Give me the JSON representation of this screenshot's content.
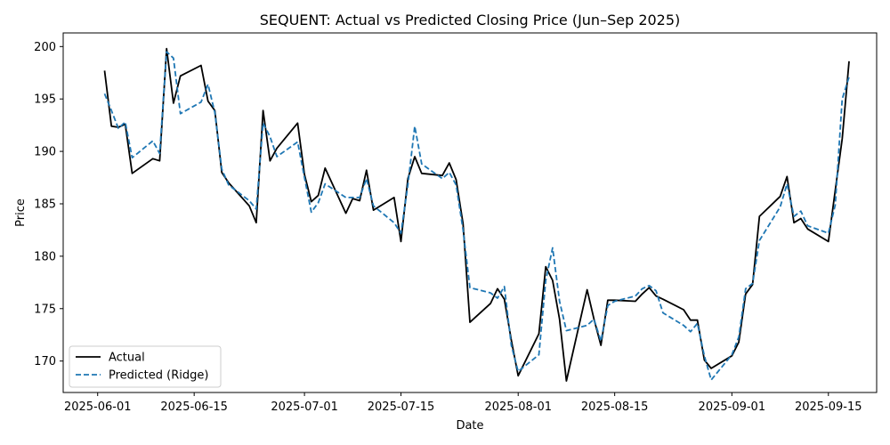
{
  "chart_data": {
    "type": "line",
    "title": "SEQUENT: Actual vs Predicted Closing Price (Jun–Sep 2025)",
    "xlabel": "Date",
    "ylabel": "Price",
    "x_tick_labels": [
      "2025-06-01",
      "2025-06-15",
      "2025-07-01",
      "2025-07-15",
      "2025-08-01",
      "2025-08-15",
      "2025-09-01",
      "2025-09-15"
    ],
    "y_ticks": [
      170,
      175,
      180,
      185,
      190,
      195,
      200
    ],
    "xlim": [
      "2025-05-27",
      "2025-09-22"
    ],
    "ylim": [
      167,
      201.3
    ],
    "grid": false,
    "legend_position": "lower-left",
    "series": [
      {
        "name": "Actual",
        "color": "#000000",
        "style": "solid",
        "points": [
          [
            "2025-06-02",
            197.7
          ],
          [
            "2025-06-03",
            192.4
          ],
          [
            "2025-06-04",
            192.3
          ],
          [
            "2025-06-05",
            192.6
          ],
          [
            "2025-06-06",
            187.9
          ],
          [
            "2025-06-09",
            189.3
          ],
          [
            "2025-06-10",
            189.1
          ],
          [
            "2025-06-11",
            199.8
          ],
          [
            "2025-06-12",
            194.6
          ],
          [
            "2025-06-13",
            197.2
          ],
          [
            "2025-06-16",
            198.2
          ],
          [
            "2025-06-17",
            194.8
          ],
          [
            "2025-06-18",
            193.9
          ],
          [
            "2025-06-19",
            188.0
          ],
          [
            "2025-06-20",
            187.0
          ],
          [
            "2025-06-23",
            184.8
          ],
          [
            "2025-06-24",
            183.2
          ],
          [
            "2025-06-25",
            193.9
          ],
          [
            "2025-06-26",
            189.1
          ],
          [
            "2025-06-27",
            190.3
          ],
          [
            "2025-06-30",
            192.7
          ],
          [
            "2025-07-01",
            187.8
          ],
          [
            "2025-07-02",
            185.2
          ],
          [
            "2025-07-03",
            185.8
          ],
          [
            "2025-07-04",
            188.4
          ],
          [
            "2025-07-07",
            184.1
          ],
          [
            "2025-07-08",
            185.5
          ],
          [
            "2025-07-09",
            185.3
          ],
          [
            "2025-07-10",
            188.2
          ],
          [
            "2025-07-11",
            184.4
          ],
          [
            "2025-07-14",
            185.6
          ],
          [
            "2025-07-15",
            181.4
          ],
          [
            "2025-07-16",
            187.4
          ],
          [
            "2025-07-17",
            189.5
          ],
          [
            "2025-07-18",
            187.9
          ],
          [
            "2025-07-21",
            187.7
          ],
          [
            "2025-07-22",
            188.9
          ],
          [
            "2025-07-23",
            187.3
          ],
          [
            "2025-07-24",
            183.1
          ],
          [
            "2025-07-25",
            173.7
          ],
          [
            "2025-07-28",
            175.5
          ],
          [
            "2025-07-29",
            176.9
          ],
          [
            "2025-07-30",
            175.9
          ],
          [
            "2025-07-31",
            172.0
          ],
          [
            "2025-08-01",
            168.6
          ],
          [
            "2025-08-04",
            172.6
          ],
          [
            "2025-08-05",
            179.0
          ],
          [
            "2025-08-06",
            177.7
          ],
          [
            "2025-08-07",
            174.0
          ],
          [
            "2025-08-08",
            168.1
          ],
          [
            "2025-08-11",
            176.8
          ],
          [
            "2025-08-12",
            174.0
          ],
          [
            "2025-08-13",
            171.5
          ],
          [
            "2025-08-14",
            175.8
          ],
          [
            "2025-08-15",
            175.8
          ],
          [
            "2025-08-18",
            175.7
          ],
          [
            "2025-08-19",
            176.4
          ],
          [
            "2025-08-20",
            177.0
          ],
          [
            "2025-08-21",
            176.2
          ],
          [
            "2025-08-22",
            175.9
          ],
          [
            "2025-08-25",
            174.9
          ],
          [
            "2025-08-26",
            173.9
          ],
          [
            "2025-08-27",
            173.9
          ],
          [
            "2025-08-28",
            170.1
          ],
          [
            "2025-08-29",
            169.3
          ],
          [
            "2025-09-01",
            170.5
          ],
          [
            "2025-09-02",
            171.8
          ],
          [
            "2025-09-03",
            176.4
          ],
          [
            "2025-09-04",
            177.3
          ],
          [
            "2025-09-05",
            183.8
          ],
          [
            "2025-09-08",
            185.7
          ],
          [
            "2025-09-09",
            187.6
          ],
          [
            "2025-09-10",
            183.2
          ],
          [
            "2025-09-11",
            183.6
          ],
          [
            "2025-09-12",
            182.6
          ],
          [
            "2025-09-15",
            181.4
          ],
          [
            "2025-09-16",
            186.3
          ],
          [
            "2025-09-17",
            191.2
          ],
          [
            "2025-09-18",
            198.6
          ]
        ]
      },
      {
        "name": "Predicted (Ridge)",
        "color": "#1f77b4",
        "style": "dashed",
        "points": [
          [
            "2025-06-02",
            195.5
          ],
          [
            "2025-06-03",
            193.9
          ],
          [
            "2025-06-04",
            192.2
          ],
          [
            "2025-06-05",
            192.8
          ],
          [
            "2025-06-06",
            189.4
          ],
          [
            "2025-06-09",
            191.0
          ],
          [
            "2025-06-10",
            189.8
          ],
          [
            "2025-06-11",
            199.5
          ],
          [
            "2025-06-12",
            198.9
          ],
          [
            "2025-06-13",
            193.6
          ],
          [
            "2025-06-16",
            194.7
          ],
          [
            "2025-06-17",
            196.4
          ],
          [
            "2025-06-18",
            193.7
          ],
          [
            "2025-06-19",
            188.3
          ],
          [
            "2025-06-20",
            186.8
          ],
          [
            "2025-06-23",
            185.3
          ],
          [
            "2025-06-24",
            184.5
          ],
          [
            "2025-06-25",
            192.7
          ],
          [
            "2025-06-26",
            191.4
          ],
          [
            "2025-06-27",
            189.5
          ],
          [
            "2025-06-30",
            190.9
          ],
          [
            "2025-07-01",
            187.5
          ],
          [
            "2025-07-02",
            184.2
          ],
          [
            "2025-07-03",
            185.1
          ],
          [
            "2025-07-04",
            186.9
          ],
          [
            "2025-07-07",
            185.6
          ],
          [
            "2025-07-08",
            185.6
          ],
          [
            "2025-07-09",
            185.6
          ],
          [
            "2025-07-10",
            187.4
          ],
          [
            "2025-07-11",
            184.8
          ],
          [
            "2025-07-14",
            183.2
          ],
          [
            "2025-07-15",
            182.2
          ],
          [
            "2025-07-16",
            186.8
          ],
          [
            "2025-07-17",
            192.4
          ],
          [
            "2025-07-18",
            188.8
          ],
          [
            "2025-07-21",
            187.4
          ],
          [
            "2025-07-22",
            188.0
          ],
          [
            "2025-07-23",
            186.8
          ],
          [
            "2025-07-24",
            182.5
          ],
          [
            "2025-07-25",
            177.0
          ],
          [
            "2025-07-28",
            176.5
          ],
          [
            "2025-07-29",
            176.0
          ],
          [
            "2025-07-30",
            177.1
          ],
          [
            "2025-07-31",
            171.5
          ],
          [
            "2025-08-01",
            169.0
          ],
          [
            "2025-08-04",
            170.6
          ],
          [
            "2025-08-05",
            177.7
          ],
          [
            "2025-08-06",
            180.8
          ],
          [
            "2025-08-07",
            175.7
          ],
          [
            "2025-08-08",
            172.9
          ],
          [
            "2025-08-11",
            173.4
          ],
          [
            "2025-08-12",
            174.0
          ],
          [
            "2025-08-13",
            171.9
          ],
          [
            "2025-08-14",
            175.3
          ],
          [
            "2025-08-15",
            175.7
          ],
          [
            "2025-08-18",
            176.2
          ],
          [
            "2025-08-19",
            176.9
          ],
          [
            "2025-08-20",
            177.2
          ],
          [
            "2025-08-21",
            176.7
          ],
          [
            "2025-08-22",
            174.6
          ],
          [
            "2025-08-25",
            173.4
          ],
          [
            "2025-08-26",
            172.8
          ],
          [
            "2025-08-27",
            173.6
          ],
          [
            "2025-08-28",
            170.5
          ],
          [
            "2025-08-29",
            168.2
          ],
          [
            "2025-09-01",
            170.6
          ],
          [
            "2025-09-02",
            172.3
          ],
          [
            "2025-09-03",
            176.9
          ],
          [
            "2025-09-04",
            177.4
          ],
          [
            "2025-09-05",
            181.5
          ],
          [
            "2025-09-08",
            184.7
          ],
          [
            "2025-09-09",
            186.9
          ],
          [
            "2025-09-10",
            183.8
          ],
          [
            "2025-09-11",
            184.3
          ],
          [
            "2025-09-12",
            182.9
          ],
          [
            "2025-09-15",
            182.2
          ],
          [
            "2025-09-16",
            184.9
          ],
          [
            "2025-09-17",
            195.0
          ],
          [
            "2025-09-18",
            197.1
          ]
        ]
      }
    ]
  }
}
